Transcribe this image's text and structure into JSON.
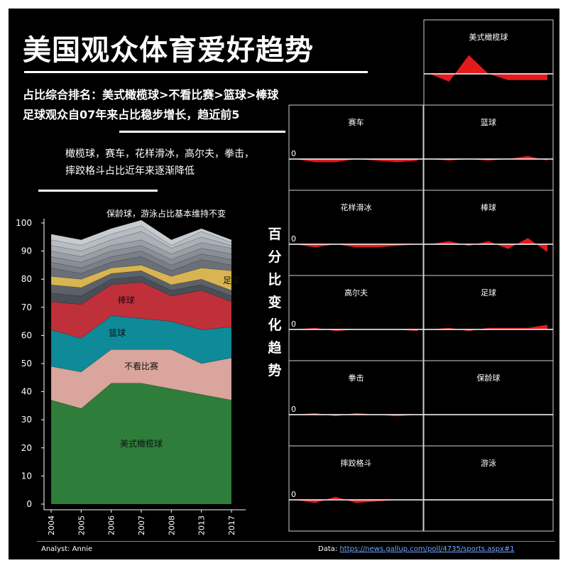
{
  "header": {
    "title": "美国观众体育爱好趋势",
    "subtitle_line1": "占比综合排名：美式橄榄球>不看比赛>篮球>棒球",
    "subtitle_line2": "足球观众自07年来占比稳步增长，趋近前5",
    "note1_line1": "橄榄球，赛车，花样滑冰，高尔夫，拳击，",
    "note1_line2": "摔跤格斗占比近年来逐渐降低",
    "note2": "保龄球，游泳占比基本维持不变",
    "side_title": "百分比变化趋势"
  },
  "footer": {
    "analyst": "Analyst: Annie",
    "data_label": "Data: ",
    "data_url": "https://news.gallup.com/poll/4735/sports.aspx#1"
  },
  "colors": {
    "background": "#000000",
    "spark_fill": "#e31a1c",
    "baseline": "#ffffff",
    "football": "#2e7d3a",
    "none": "#d9a59c",
    "basketball": "#0f8a99",
    "baseball": "#c0303a",
    "soccer": "#d8b552"
  },
  "chart_data": [
    {
      "type": "area",
      "stacked": true,
      "categories": [
        "2004",
        "2005",
        "2006",
        "2007",
        "2008",
        "2013",
        "2017"
      ],
      "ylim": [
        0,
        100
      ],
      "yticks": [
        0,
        10,
        20,
        30,
        40,
        50,
        60,
        70,
        80,
        90,
        100
      ],
      "grid": false,
      "series": [
        {
          "name": "美式橄榄球",
          "color": "#2e7d3a",
          "values": [
            37,
            34,
            43,
            43,
            41,
            39,
            37
          ]
        },
        {
          "name": "不看比赛",
          "color": "#d9a59c",
          "values": [
            12,
            13,
            12,
            12,
            14,
            11,
            15
          ]
        },
        {
          "name": "篮球",
          "color": "#0f8a99",
          "values": [
            13,
            12,
            12,
            11,
            10,
            12,
            11
          ]
        },
        {
          "name": "棒球",
          "color": "#c0303a",
          "values": [
            10,
            12,
            11,
            13,
            9,
            14,
            9
          ]
        },
        {
          "name": "",
          "color": "#4a4f57",
          "values": [
            3,
            3,
            2,
            2,
            2,
            2,
            2
          ]
        },
        {
          "name": "",
          "color": "#5c6169",
          "values": [
            3,
            3,
            2,
            2,
            2,
            2,
            2
          ]
        },
        {
          "name": "足球",
          "color": "#d8b552",
          "values": [
            3,
            3,
            2,
            2,
            3,
            4,
            7
          ]
        },
        {
          "name": "",
          "color": "#6b7078",
          "values": [
            3,
            2,
            2,
            3,
            2,
            3,
            2
          ]
        },
        {
          "name": "",
          "color": "#7b8088",
          "values": [
            2,
            2,
            2,
            2,
            2,
            2,
            2
          ]
        },
        {
          "name": "",
          "color": "#8a8f97",
          "values": [
            2,
            2,
            2,
            2,
            2,
            2,
            2
          ]
        },
        {
          "name": "",
          "color": "#9a9fa6",
          "values": [
            2,
            2,
            2,
            2,
            2,
            2,
            2
          ]
        },
        {
          "name": "",
          "color": "#aab0b6",
          "values": [
            2,
            2,
            2,
            3,
            2,
            2,
            1
          ]
        },
        {
          "name": "",
          "color": "#b8bdc3",
          "values": [
            2,
            2,
            2,
            2,
            1,
            2,
            1
          ]
        },
        {
          "name": "",
          "color": "#c6cbd0",
          "values": [
            2,
            2,
            2,
            2,
            2,
            1,
            1
          ]
        }
      ]
    },
    {
      "type": "area",
      "panels": [
        {
          "name": "美式橄榄球",
          "show_zero": false,
          "values": [
            0,
            -5,
            12,
            0,
            -4,
            -4,
            -4
          ]
        },
        {
          "name": "赛车",
          "show_zero": true,
          "values": [
            0,
            -2,
            -2,
            0,
            -1,
            -2,
            -1
          ]
        },
        {
          "name": "篮球",
          "show_zero": false,
          "values": [
            0,
            -1,
            0,
            -1,
            0,
            2,
            -1
          ]
        },
        {
          "name": "花样滑冰",
          "show_zero": true,
          "values": [
            0,
            -2,
            0,
            -2,
            -2,
            -1,
            0
          ]
        },
        {
          "name": "棒球",
          "show_zero": false,
          "values": [
            0,
            2,
            -1,
            2,
            -3,
            4,
            -5
          ]
        },
        {
          "name": "高尔夫",
          "show_zero": true,
          "values": [
            0,
            1,
            -1,
            0,
            0,
            0,
            -1
          ]
        },
        {
          "name": "足球",
          "show_zero": false,
          "values": [
            0,
            1,
            -1,
            1,
            1,
            1,
            3
          ]
        },
        {
          "name": "拳击",
          "show_zero": true,
          "values": [
            0,
            1,
            -1,
            1,
            0,
            -1,
            0
          ]
        },
        {
          "name": "保龄球",
          "show_zero": false,
          "values": [
            0,
            0,
            0,
            0,
            0,
            0,
            0
          ]
        },
        {
          "name": "摔跤格斗",
          "show_zero": true,
          "values": [
            0,
            -2,
            2,
            -2,
            -1,
            0,
            0
          ]
        },
        {
          "name": "游泳",
          "show_zero": false,
          "values": [
            0,
            0,
            0,
            0,
            0,
            0,
            0
          ]
        }
      ]
    }
  ]
}
